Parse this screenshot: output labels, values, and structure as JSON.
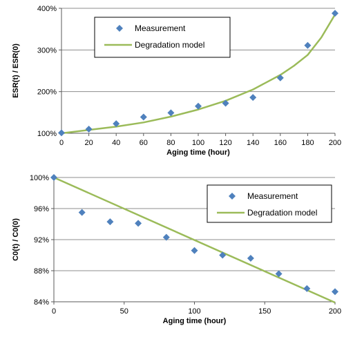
{
  "colors": {
    "measurement": "#4F81BD",
    "model": "#9BBB59",
    "grid": "#8c8c8c",
    "axis": "#595959"
  },
  "chart_data": [
    {
      "type": "scatter",
      "xlabel": "Aging time (hour)",
      "ylabel": "ESR(t) / ESR(0)",
      "xlim": [
        0,
        200
      ],
      "ylim": [
        100,
        400
      ],
      "x_ticks": [
        0,
        20,
        40,
        60,
        80,
        100,
        120,
        140,
        160,
        180,
        200
      ],
      "x_tick_labels": [
        "0",
        "20",
        "40",
        "60",
        "80",
        "100",
        "120",
        "140",
        "160",
        "180",
        "200"
      ],
      "y_ticks": [
        100,
        200,
        300,
        400
      ],
      "y_tick_labels": [
        "100%",
        "200%",
        "300%",
        "400%"
      ],
      "grid": "horizontal",
      "legend_position": "top-center",
      "series": [
        {
          "name": "Measurement",
          "type": "scatter",
          "marker": "diamond",
          "x": [
            0,
            20,
            40,
            60,
            80,
            100,
            120,
            140,
            160,
            180,
            200
          ],
          "y": [
            101,
            110,
            123,
            139,
            149,
            165,
            172,
            186,
            233,
            311,
            388
          ]
        },
        {
          "name": "Degradation model",
          "type": "line",
          "x": [
            0,
            20,
            40,
            60,
            80,
            100,
            120,
            140,
            160,
            170,
            180,
            190,
            200
          ],
          "y": [
            100,
            108,
            116,
            126,
            140,
            157,
            178,
            205,
            240,
            262,
            288,
            330,
            385
          ]
        }
      ]
    },
    {
      "type": "scatter",
      "xlabel": "Aging time (hour)",
      "ylabel": "C0(t) / C0(0)",
      "xlim": [
        0,
        200
      ],
      "ylim": [
        84,
        100
      ],
      "x_ticks": [
        0,
        50,
        100,
        150,
        200
      ],
      "x_tick_labels": [
        "0",
        "50",
        "100",
        "150",
        "200"
      ],
      "y_ticks": [
        84,
        88,
        92,
        96,
        100
      ],
      "y_tick_labels": [
        "84%",
        "88%",
        "92%",
        "96%",
        "100%"
      ],
      "grid": "horizontal",
      "legend_position": "top-right",
      "series": [
        {
          "name": "Measurement",
          "type": "scatter",
          "marker": "diamond",
          "x": [
            0,
            20,
            40,
            60,
            80,
            100,
            120,
            140,
            160,
            180,
            200
          ],
          "y": [
            100,
            95.5,
            94.3,
            94.1,
            92.3,
            90.6,
            90.0,
            89.6,
            87.6,
            85.7,
            85.3
          ]
        },
        {
          "name": "Degradation model",
          "type": "line",
          "x": [
            0,
            200
          ],
          "y": [
            100,
            83.9
          ]
        }
      ]
    }
  ]
}
